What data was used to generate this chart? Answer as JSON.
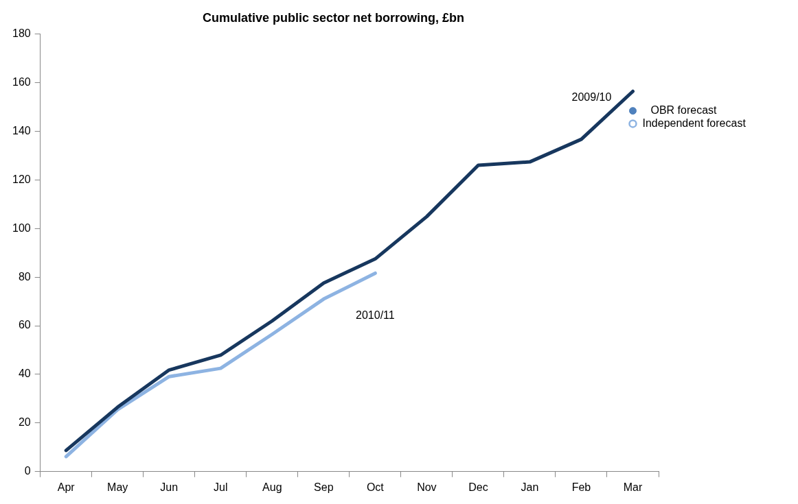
{
  "chart_data": {
    "type": "line",
    "title": "Cumulative public sector net borrowing, £bn",
    "categories": [
      "Apr",
      "May",
      "Jun",
      "Jul",
      "Aug",
      "Sep",
      "Oct",
      "Nov",
      "Dec",
      "Jan",
      "Feb",
      "Mar"
    ],
    "series": [
      {
        "name": "2009/10",
        "color": "#17375e",
        "values": [
          8.7,
          26.5,
          41.8,
          47.9,
          62,
          77.6,
          87.5,
          104.9,
          126,
          127.4,
          136.7,
          156.4
        ]
      },
      {
        "name": "2010/11",
        "color": "#8db3e2",
        "values": [
          6.2,
          25.5,
          39.1,
          42.5,
          56.5,
          71,
          81.6,
          null,
          null,
          null,
          null,
          null
        ]
      },
      {
        "name": "OBR forecast",
        "type": "scatter",
        "marker": "circle",
        "color": "#4f81bd",
        "x": [
          "Mar"
        ],
        "values": [
          148.4
        ]
      },
      {
        "name": "Independent forecast",
        "type": "scatter",
        "marker": "circle",
        "color": "#8db3e2",
        "x": [
          "Mar"
        ],
        "values": [
          143.1
        ]
      }
    ],
    "ylim": [
      0,
      180
    ],
    "yticks": [
      0,
      20,
      40,
      60,
      80,
      100,
      120,
      140,
      160,
      180
    ],
    "grid": false,
    "legend": false
  }
}
